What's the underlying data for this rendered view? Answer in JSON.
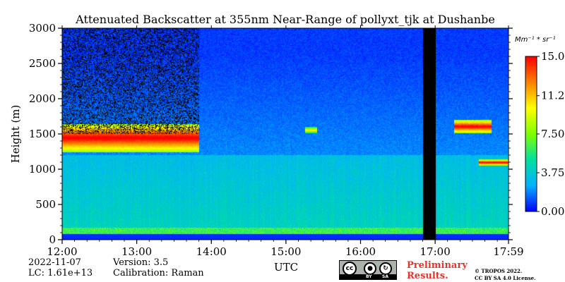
{
  "chart_data": {
    "type": "heatmap",
    "title": "Attenuated Backscatter at 355nm Near-Range of pollyxt_tjk at Dushanbe",
    "xlabel": "UTC",
    "ylabel": "Height (m)",
    "xlim": [
      "12:00",
      "17:59"
    ],
    "ylim": [
      0,
      3000
    ],
    "x_ticks": [
      "12:00",
      "13:00",
      "14:00",
      "15:00",
      "16:00",
      "17:00",
      "17:59"
    ],
    "y_ticks": [
      "0",
      "500",
      "1000",
      "1500",
      "2000",
      "2500",
      "3000"
    ],
    "colorbar": {
      "unit": "Mm⁻¹ * sr⁻¹",
      "range": [
        0.0,
        15.0
      ],
      "ticks": [
        "0.00",
        "3.75",
        "7.50",
        "11.2",
        "15.0"
      ],
      "colors": [
        "#0000ff",
        "#00b0ff",
        "#00e0a0",
        "#7fff00",
        "#ffff00",
        "#ff8000",
        "#ff0000"
      ]
    },
    "cloud_layers": [
      {
        "start": "12:00",
        "end": "13:50",
        "base_m": 1250,
        "top_m": 1650,
        "intensity": 15
      },
      {
        "start": "15:15",
        "end": "15:25",
        "base_m": 1520,
        "top_m": 1600,
        "intensity": 10
      },
      {
        "start": "17:15",
        "end": "17:45",
        "base_m": 1520,
        "top_m": 1700,
        "intensity": 15
      },
      {
        "start": "17:35",
        "end": "17:59",
        "base_m": 1060,
        "top_m": 1140,
        "intensity": 15
      }
    ],
    "aerosol_layer": {
      "base_m": 0,
      "top_m": 1200,
      "intensity": 3.5
    },
    "no_data_intervals": [
      {
        "start": "16:50",
        "end": "17:00"
      }
    ]
  },
  "meta": {
    "date": "2022-11-07",
    "lc": "LC: 1.61e+13",
    "version": "Version: 3.5",
    "calibration": "Calibration: Raman"
  },
  "license": {
    "badge_cc": "cc",
    "badge_by": "BY",
    "badge_sa": "SA",
    "preliminary_line1": "Preliminary",
    "preliminary_line2": "Results.",
    "copyright_line1": "© TROPOS 2022.",
    "copyright_line2": "CC BY SA 4.0 License."
  }
}
